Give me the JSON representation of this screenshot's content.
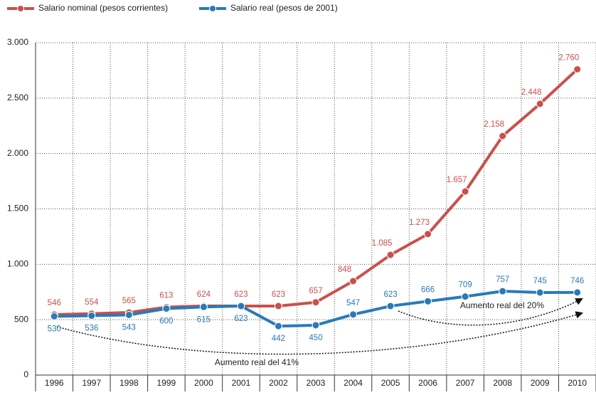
{
  "chart_data": {
    "type": "line",
    "categories": [
      "1996",
      "1997",
      "1998",
      "1999",
      "2000",
      "2001",
      "2002",
      "2003",
      "2004",
      "2005",
      "2006",
      "2007",
      "2008",
      "2009",
      "2010"
    ],
    "series": [
      {
        "name": "Salario nominal (pesos corrientes)",
        "color": "#c9504c",
        "values": [
          546,
          554,
          565,
          613,
          624,
          623,
          623,
          657,
          848,
          1085,
          1273,
          1657,
          2158,
          2448,
          2760
        ],
        "value_labels": [
          "546",
          "554",
          "565",
          "613",
          "624",
          "623",
          "623",
          "657",
          "848",
          "1.085",
          "1.273",
          "1.657",
          "2.158",
          "2.448",
          "2.760"
        ]
      },
      {
        "name": "Salario real (pesos de 2001)",
        "color": "#2a7ab8",
        "values": [
          530,
          536,
          543,
          600,
          615,
          623,
          442,
          450,
          547,
          623,
          666,
          709,
          757,
          745,
          746
        ]
      }
    ],
    "ylim": [
      0,
      3000
    ],
    "yticks": [
      0,
      500,
      {
        "value": 1000,
        "label": "1.000"
      },
      {
        "value": 1500,
        "label": "1.500"
      },
      {
        "value": 2000,
        "label": "2.000"
      },
      {
        "value": 2500,
        "label": "2.500"
      },
      {
        "value": 3000,
        "label": "3.000"
      }
    ],
    "grid": true,
    "annotations": [
      "Aumento real del 20%",
      "Aumento real del 41%"
    ]
  }
}
